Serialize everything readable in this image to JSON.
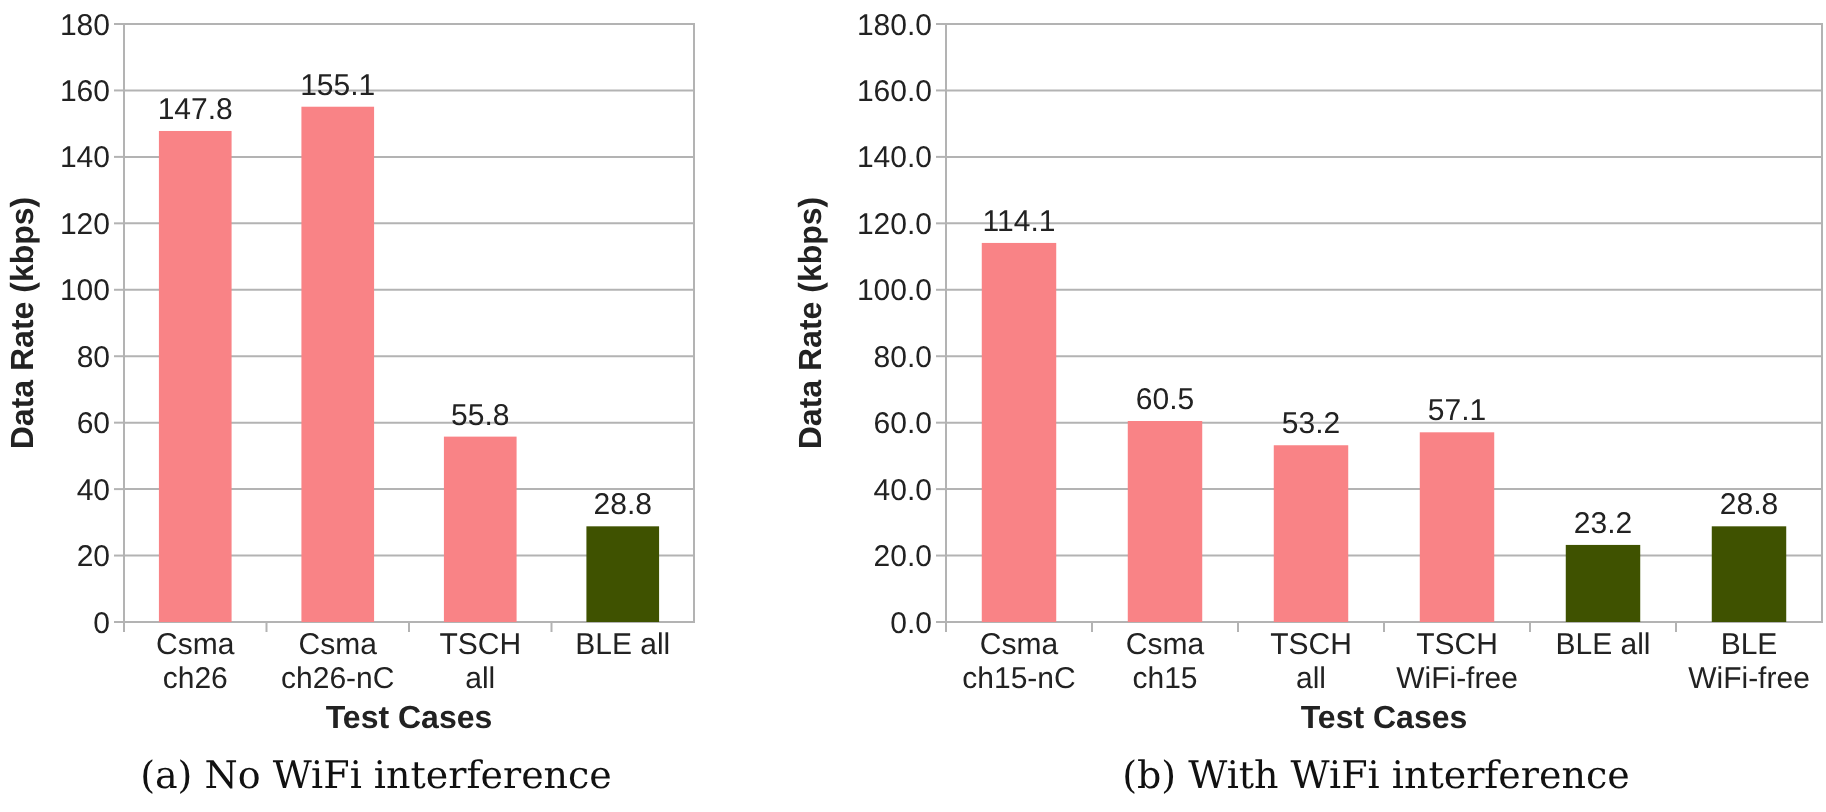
{
  "chart_data": [
    {
      "type": "bar",
      "categories": [
        "Csma\nch26",
        "Csma\nch26-nC",
        "TSCH\nall",
        "BLE all"
      ],
      "values": [
        147.8,
        155.1,
        55.8,
        28.8
      ],
      "colors": [
        "#f98386",
        "#f98386",
        "#f98386",
        "#3f5200"
      ],
      "ylim": [
        0,
        180
      ],
      "yticks": [
        0,
        20,
        40,
        60,
        80,
        100,
        120,
        140,
        160,
        180
      ],
      "grid": "y",
      "data_labels": true,
      "xlabel": "Test Cases",
      "ylabel": "Data Rate (kbps)",
      "annotations": [
        "(a) No WiFi interference"
      ]
    },
    {
      "type": "bar",
      "categories": [
        "Csma\nch15-nC",
        "Csma\nch15",
        "TSCH\nall",
        "TSCH\nWiFi-free",
        "BLE all",
        "BLE\nWiFi-free"
      ],
      "values": [
        114.1,
        60.5,
        53.2,
        57.1,
        23.2,
        28.8
      ],
      "colors": [
        "#f98386",
        "#f98386",
        "#f98386",
        "#f98386",
        "#3f5200",
        "#3f5200"
      ],
      "ylim": [
        0,
        180
      ],
      "yticks": [
        {
          "value": 0,
          "label": "0.0"
        },
        {
          "value": 20,
          "label": "20.0"
        },
        {
          "value": 40,
          "label": "40.0"
        },
        {
          "value": 60,
          "label": "60.0"
        },
        {
          "value": 80,
          "label": "80.0"
        },
        {
          "value": 100,
          "label": "100.0"
        },
        {
          "value": 120,
          "label": "120.0"
        },
        {
          "value": 140,
          "label": "140.0"
        },
        {
          "value": 160,
          "label": "160.0"
        },
        {
          "value": 180,
          "label": "180.0"
        }
      ],
      "grid": "y",
      "data_labels": true,
      "xlabel": "Test Cases",
      "ylabel": "Data Rate (kbps)",
      "annotations": [
        "(b) With WiFi interference"
      ]
    }
  ]
}
